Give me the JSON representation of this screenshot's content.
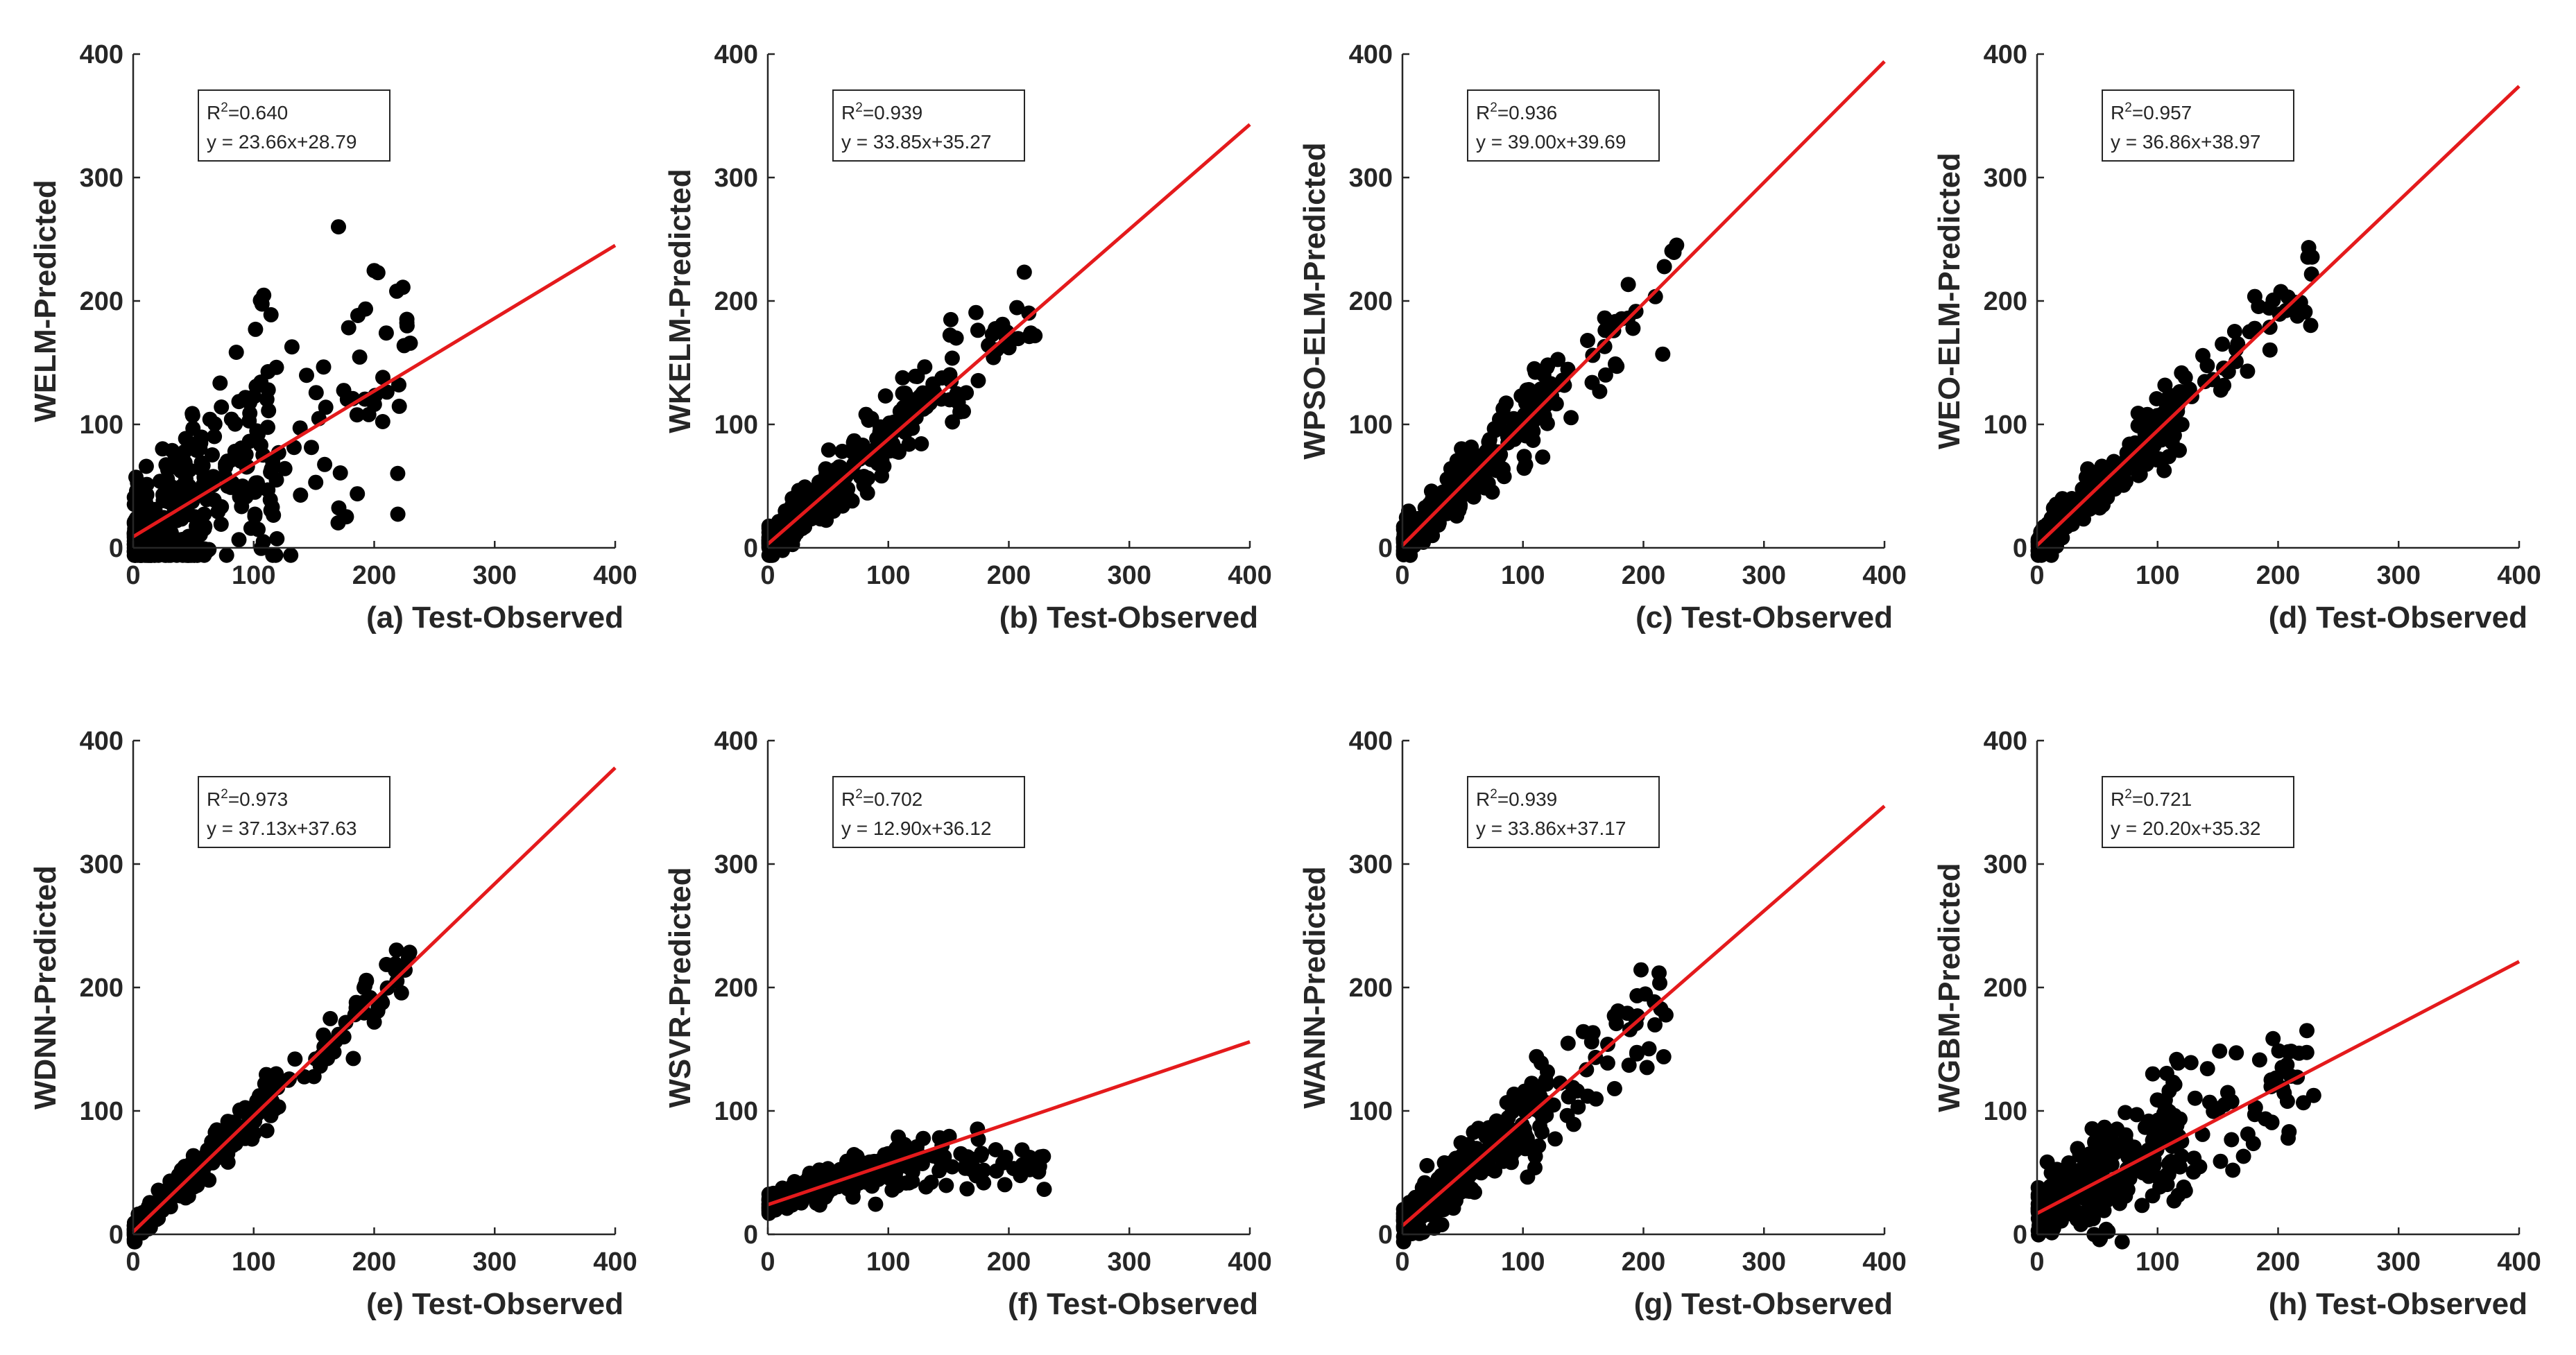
{
  "figure": {
    "layout": "2 rows x 4 columns of scatter plots with linear fit lines",
    "point_color": "#000000",
    "fit_line_color": "#e41a1c",
    "axis_color": "#262626"
  },
  "chart_data": [
    {
      "type": "scatter",
      "panel": "a",
      "xlabel": "(a) Test-Observed",
      "ylabel": "WELM-Predicted",
      "xlim": [
        0,
        400
      ],
      "ylim": [
        0,
        400
      ],
      "xticks": [
        "0",
        "100",
        "200",
        "300",
        "400"
      ],
      "yticks": [
        "0",
        "100",
        "200",
        "300",
        "400"
      ],
      "r2_label": "=0.640",
      "equation": "y = 23.66x+28.79",
      "fit": {
        "slope": 0.59,
        "intercept": 9
      },
      "scatter_profile": {
        "x_max": 230,
        "spread": 55,
        "density": 360
      }
    },
    {
      "type": "scatter",
      "panel": "b",
      "xlabel": "(b) Test-Observed",
      "ylabel": "WKELM-Predicted",
      "xlim": [
        0,
        400
      ],
      "ylim": [
        0,
        400
      ],
      "xticks": [
        "0",
        "100",
        "200",
        "300",
        "400"
      ],
      "yticks": [
        "0",
        "100",
        "200",
        "300",
        "400"
      ],
      "r2_label": "=0.939",
      "equation": "y = 33.85x+35.27",
      "fit": {
        "slope": 0.85,
        "intercept": 3
      },
      "scatter_profile": {
        "x_max": 225,
        "spread": 20,
        "density": 330
      }
    },
    {
      "type": "scatter",
      "panel": "c",
      "xlabel": "(c) Test-Observed",
      "ylabel": "WPSO-ELM-Predicted",
      "xlim": [
        0,
        400
      ],
      "ylim": [
        0,
        400
      ],
      "xticks": [
        "0",
        "100",
        "200",
        "300",
        "400"
      ],
      "yticks": [
        "0",
        "100",
        "200",
        "300",
        "400"
      ],
      "r2_label": "=0.936",
      "equation": "y = 39.00x+39.69",
      "fit": {
        "slope": 0.98,
        "intercept": 2
      },
      "scatter_profile": {
        "x_max": 230,
        "spread": 20,
        "density": 330
      }
    },
    {
      "type": "scatter",
      "panel": "d",
      "xlabel": "(d) Test-Observed",
      "ylabel": "WEO-ELM-Predicted",
      "xlim": [
        0,
        400
      ],
      "ylim": [
        0,
        400
      ],
      "xticks": [
        "0",
        "100",
        "200",
        "300",
        "400"
      ],
      "yticks": [
        "0",
        "100",
        "200",
        "300",
        "400"
      ],
      "r2_label": "=0.957",
      "equation": "y = 36.86x+38.97",
      "fit": {
        "slope": 0.93,
        "intercept": 2
      },
      "scatter_profile": {
        "x_max": 230,
        "spread": 16,
        "density": 320
      }
    },
    {
      "type": "scatter",
      "panel": "e",
      "xlabel": "(e) Test-Observed",
      "ylabel": "WDNN-Predicted",
      "xlim": [
        0,
        400
      ],
      "ylim": [
        0,
        400
      ],
      "xticks": [
        "0",
        "100",
        "200",
        "300",
        "400"
      ],
      "yticks": [
        "0",
        "100",
        "200",
        "300",
        "400"
      ],
      "r2_label": "=0.973",
      "equation": "y = 37.13x+37.63",
      "fit": {
        "slope": 0.94,
        "intercept": 2
      },
      "scatter_profile": {
        "x_max": 230,
        "spread": 12,
        "density": 330
      }
    },
    {
      "type": "scatter",
      "panel": "f",
      "xlabel": "(f) Test-Observed",
      "ylabel": "WSVR-Predicted",
      "xlim": [
        0,
        400
      ],
      "ylim": [
        0,
        400
      ],
      "xticks": [
        "0",
        "100",
        "200",
        "300",
        "400"
      ],
      "yticks": [
        "0",
        "100",
        "200",
        "300",
        "400"
      ],
      "r2_label": "=0.702",
      "equation": "y = 12.90x+36.12",
      "fit": {
        "slope": 0.33,
        "intercept": 24
      },
      "scatter_profile": {
        "x_max": 230,
        "spread": 10,
        "density": 340,
        "saturation": 60
      }
    },
    {
      "type": "scatter",
      "panel": "g",
      "xlabel": "(g) Test-Observed",
      "ylabel": "WANN-Predicted",
      "xlim": [
        0,
        400
      ],
      "ylim": [
        0,
        400
      ],
      "xticks": [
        "0",
        "100",
        "200",
        "300",
        "400"
      ],
      "yticks": [
        "0",
        "100",
        "200",
        "300",
        "400"
      ],
      "r2_label": "=0.939",
      "equation": "y = 33.86x+37.17",
      "fit": {
        "slope": 0.85,
        "intercept": 7
      },
      "scatter_profile": {
        "x_max": 220,
        "spread": 20,
        "density": 330
      }
    },
    {
      "type": "scatter",
      "panel": "h",
      "xlabel": "(h) Test-Observed",
      "ylabel": "WGBM-Predicted",
      "xlim": [
        0,
        400
      ],
      "ylim": [
        0,
        400
      ],
      "xticks": [
        "0",
        "100",
        "200",
        "300",
        "400"
      ],
      "yticks": [
        "0",
        "100",
        "200",
        "300",
        "400"
      ],
      "r2_label": "=0.721",
      "equation": "y = 20.20x+35.32",
      "fit": {
        "slope": 0.51,
        "intercept": 17
      },
      "scatter_profile": {
        "x_max": 230,
        "spread": 30,
        "density": 360
      }
    }
  ]
}
